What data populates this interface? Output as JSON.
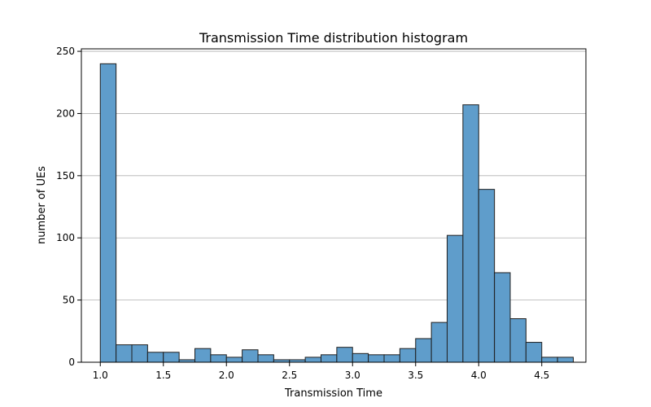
{
  "chart_data": {
    "type": "bar",
    "title": "Transmission Time distribution histogram",
    "xlabel": "Transmission Time",
    "ylabel": "number of UEs",
    "xlim": [
      0.85,
      4.85
    ],
    "ylim": [
      0,
      252
    ],
    "bin_width": 0.125,
    "bins": [
      {
        "start": 1.0,
        "count": 240
      },
      {
        "start": 1.125,
        "count": 14
      },
      {
        "start": 1.25,
        "count": 14
      },
      {
        "start": 1.375,
        "count": 8
      },
      {
        "start": 1.5,
        "count": 8
      },
      {
        "start": 1.625,
        "count": 2
      },
      {
        "start": 1.75,
        "count": 11
      },
      {
        "start": 1.875,
        "count": 6
      },
      {
        "start": 2.0,
        "count": 4
      },
      {
        "start": 2.125,
        "count": 10
      },
      {
        "start": 2.25,
        "count": 6
      },
      {
        "start": 2.375,
        "count": 2
      },
      {
        "start": 2.5,
        "count": 2
      },
      {
        "start": 2.625,
        "count": 4
      },
      {
        "start": 2.75,
        "count": 6
      },
      {
        "start": 2.875,
        "count": 12
      },
      {
        "start": 3.0,
        "count": 7
      },
      {
        "start": 3.125,
        "count": 6
      },
      {
        "start": 3.25,
        "count": 6
      },
      {
        "start": 3.375,
        "count": 11
      },
      {
        "start": 3.5,
        "count": 19
      },
      {
        "start": 3.625,
        "count": 32
      },
      {
        "start": 3.75,
        "count": 102
      },
      {
        "start": 3.875,
        "count": 207
      },
      {
        "start": 4.0,
        "count": 139
      },
      {
        "start": 4.125,
        "count": 72
      },
      {
        "start": 4.25,
        "count": 35
      },
      {
        "start": 4.375,
        "count": 16
      },
      {
        "start": 4.5,
        "count": 4
      },
      {
        "start": 4.625,
        "count": 4
      }
    ],
    "x_ticks": [
      {
        "value": 1.0,
        "label": "1.0"
      },
      {
        "value": 1.5,
        "label": "1.5"
      },
      {
        "value": 2.0,
        "label": "2.0"
      },
      {
        "value": 2.5,
        "label": "2.5"
      },
      {
        "value": 3.0,
        "label": "3.0"
      },
      {
        "value": 3.5,
        "label": "3.5"
      },
      {
        "value": 4.0,
        "label": "4.0"
      },
      {
        "value": 4.5,
        "label": "4.5"
      }
    ],
    "y_ticks": [
      {
        "value": 0,
        "label": "0"
      },
      {
        "value": 50,
        "label": "50"
      },
      {
        "value": 100,
        "label": "100"
      },
      {
        "value": 150,
        "label": "150"
      },
      {
        "value": 200,
        "label": "200"
      },
      {
        "value": 250,
        "label": "250"
      }
    ],
    "grid": "y",
    "colors": {
      "bar": "#5f9dcb",
      "edge": "#1f1f1f",
      "grid": "#b0b0b0"
    }
  }
}
